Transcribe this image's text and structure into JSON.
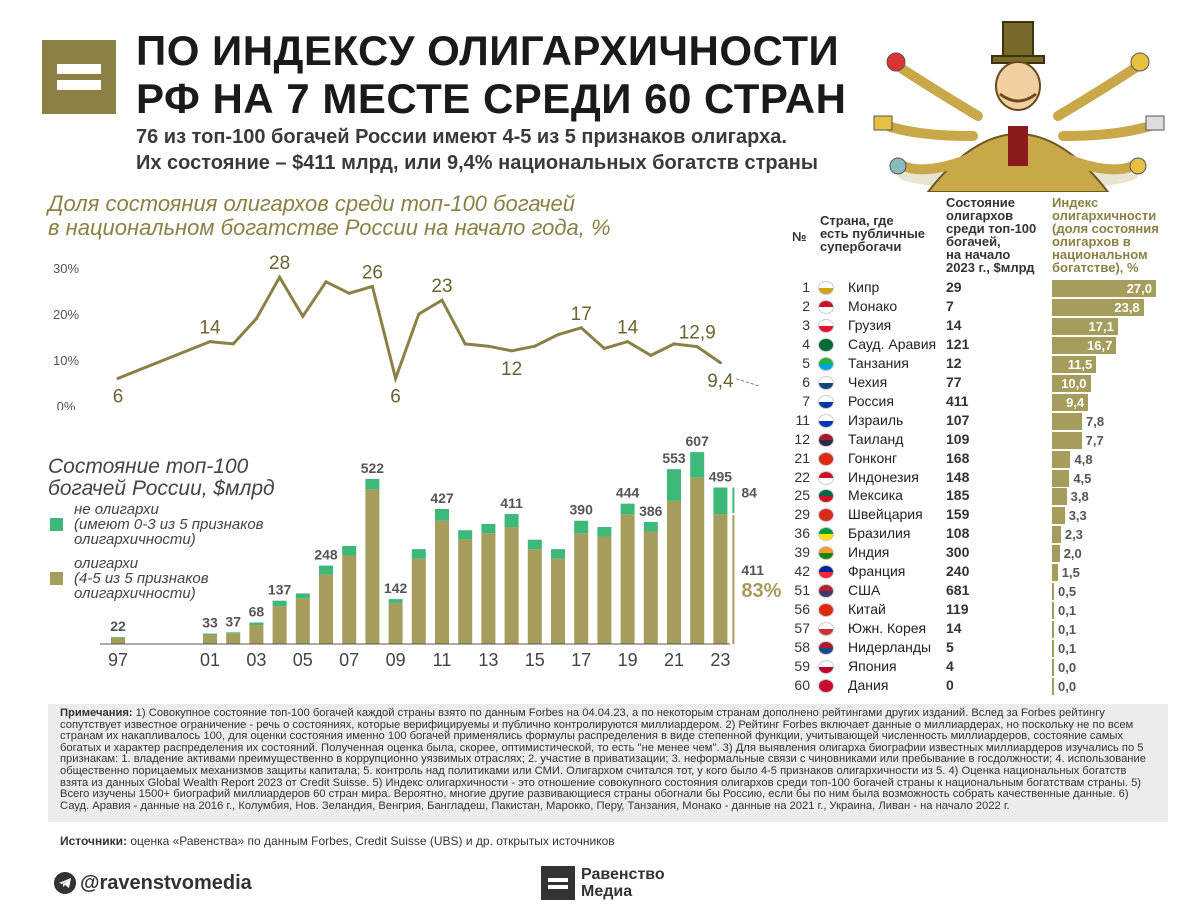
{
  "header": {
    "title_line1": "ПО ИНДЕКСУ ОЛИГАРХИЧНОСТИ",
    "title_line2": "РФ НА 7 МЕСТЕ СРЕДИ 60 СТРАН",
    "subtitle_line1": "76 из топ-100 богачей России имеют 4-5 из 5 признаков олигарха.",
    "subtitle_line2": "Их состояние – $411 млрд, или 9,4% национальных богатств страны"
  },
  "colors": {
    "olive": "#a69c5c",
    "olive_dark": "#8b8045",
    "green": "#3cb878",
    "logo": "#8b8045"
  },
  "line_chart": {
    "title_line1": "Доля состояния олигархов среди топ-100 богачей",
    "title_line2": "в национальном богатстве России на начало года, %",
    "y_ticks": [
      "30%",
      "20%",
      "10%",
      "0%"
    ]
  },
  "bar_chart": {
    "title_line1": "Состояние топ-100",
    "title_line2": "богачей России, $млрд",
    "legend_non_oligarch_1": "не олигархи",
    "legend_non_oligarch_2": "(имеют 0-3 из 5 признаков",
    "legend_non_oligarch_3": "олигархичности)",
    "legend_oligarch_1": "олигархи",
    "legend_oligarch_2": "(4-5 из 5 признаков",
    "legend_oligarch_3": "олигархичности)",
    "side_non_oligarch": "84",
    "side_oligarch": "411",
    "side_pct": "83%"
  },
  "chart_data": [
    {
      "type": "line",
      "title": "Доля состояния олигархов среди топ-100 богачей в национальном богатстве России на начало года, %",
      "x": [
        1997,
        2001,
        2002,
        2003,
        2004,
        2005,
        2006,
        2007,
        2008,
        2009,
        2010,
        2011,
        2012,
        2013,
        2014,
        2015,
        2016,
        2017,
        2018,
        2019,
        2020,
        2021,
        2022,
        2023
      ],
      "values": [
        6,
        14,
        13.5,
        19,
        28,
        19.5,
        27,
        24.5,
        26,
        6,
        20,
        23,
        13.5,
        13,
        12,
        13,
        15.5,
        17,
        12.5,
        14,
        11,
        13.5,
        12.9,
        9.4
      ],
      "labels": {
        "1997": "6",
        "2001": "14",
        "2004": "28",
        "2008": "26",
        "2009": "6",
        "2011": "23",
        "2014": "12",
        "2017": "17",
        "2019": "14",
        "2022": "12,9",
        "2023": "9,4"
      },
      "ylim": [
        0,
        30
      ],
      "y_ticks": [
        0,
        10,
        20,
        30
      ]
    },
    {
      "type": "bar",
      "stacked": true,
      "title": "Состояние топ-100 богачей России, $млрд",
      "x": [
        1997,
        2001,
        2002,
        2003,
        2004,
        2005,
        2006,
        2007,
        2008,
        2009,
        2010,
        2011,
        2012,
        2013,
        2014,
        2015,
        2016,
        2017,
        2018,
        2019,
        2020,
        2021,
        2022,
        2023
      ],
      "x_tick_labels": [
        "97",
        "01",
        "03",
        "05",
        "07",
        "09",
        "11",
        "13",
        "15",
        "17",
        "19",
        "21",
        "23"
      ],
      "totals": [
        22,
        33,
        37,
        68,
        137,
        160,
        248,
        310,
        522,
        142,
        300,
        427,
        360,
        380,
        411,
        330,
        300,
        390,
        370,
        444,
        386,
        553,
        607,
        495
      ],
      "total_labels": {
        "1997": "22",
        "2001": "33",
        "2002": "37",
        "2003": "68",
        "2004": "137",
        "2006": "248",
        "2008": "522",
        "2009": "142",
        "2011": "427",
        "2014": "411",
        "2017": "390",
        "2019": "444",
        "2020": "386",
        "2021": "553",
        "2022": "607",
        "2023": "495"
      },
      "series": [
        {
          "name": "олигархи (4-5 из 5 признаков олигархичности)",
          "values": [
            20,
            30,
            34,
            60,
            120,
            145,
            220,
            280,
            490,
            130,
            270,
            390,
            330,
            350,
            370,
            300,
            270,
            350,
            340,
            410,
            356,
            453,
            527,
            411
          ]
        },
        {
          "name": "не олигархи (имеют 0-3 из 5 признаков олигархичности)",
          "values": [
            2,
            3,
            3,
            8,
            17,
            15,
            28,
            30,
            32,
            12,
            30,
            37,
            30,
            30,
            41,
            30,
            30,
            40,
            30,
            34,
            30,
            100,
            80,
            84
          ]
        }
      ],
      "ylim": [
        0,
        620
      ]
    },
    {
      "type": "table",
      "title": "Индекс олигархичности (доля состояния олигархов в национальном богатстве), %",
      "columns": [
        "№",
        "Страна, где есть публичные супербогачи",
        "Состояние олигархов среди топ-100 богачей, на начало 2023 г., $млрд",
        "Индекс олигархичности (доля состояния олигархов в национальном богатстве), %"
      ],
      "ranks": [
        "1",
        "2",
        "3",
        "4",
        "5",
        "6",
        "7",
        "11",
        "12",
        "21",
        "22",
        "25",
        "29",
        "36",
        "39",
        "42",
        "51",
        "56",
        "57",
        "58",
        "59",
        "60"
      ],
      "countries": [
        "Кипр",
        "Монако",
        "Грузия",
        "Сауд. Аравия",
        "Танзания",
        "Чехия",
        "Россия",
        "Израиль",
        "Таиланд",
        "Гонконг",
        "Индонезия",
        "Мексика",
        "Швейцария",
        "Бразилия",
        "Индия",
        "Франция",
        "США",
        "Китай",
        "Южн. Корея",
        "Нидерланды",
        "Япония",
        "Дания"
      ],
      "wealth": [
        "29",
        "7",
        "14",
        "121",
        "12",
        "77",
        "411",
        "107",
        "109",
        "168",
        "148",
        "185",
        "159",
        "108",
        "300",
        "240",
        "681",
        "119",
        "14",
        "5",
        "4",
        "0"
      ],
      "index_values": [
        27.0,
        23.8,
        17.1,
        16.7,
        11.5,
        10.0,
        9.4,
        7.8,
        7.7,
        4.8,
        4.5,
        3.8,
        3.3,
        2.3,
        2.0,
        1.5,
        0.5,
        0.1,
        0.1,
        0.1,
        0.0,
        0.0
      ],
      "index_labels": [
        "27,0",
        "23,8",
        "17,1",
        "16,7",
        "11,5",
        "10,0",
        "9,4",
        "7,8",
        "7,7",
        "4,8",
        "4,5",
        "3,8",
        "3,3",
        "2,3",
        "2,0",
        "1,5",
        "0,5",
        "0,1",
        "0,1",
        "0,1",
        "0,0",
        "0,0"
      ]
    }
  ],
  "table": {
    "col_rank": "№",
    "col_country_1": "Страна, где",
    "col_country_2": "есть публичные",
    "col_country_3": "супербогачи",
    "col_wealth_1": "Состояние",
    "col_wealth_2": "олигархов",
    "col_wealth_3": "среди топ-100",
    "col_wealth_4": "богачей,",
    "col_wealth_5": "на начало",
    "col_wealth_6": "2023 г., $млрд",
    "col_index_1": "Индекс",
    "col_index_2": "олигархичности",
    "col_index_3": "(доля состояния",
    "col_index_4": "олигархов в",
    "col_index_5": "национальном",
    "col_index_6": "богатстве), %",
    "flag_colors": [
      [
        "#ffffff",
        "#d4a017"
      ],
      [
        "#ce1126",
        "#ffffff"
      ],
      [
        "#ffffff",
        "#e8112d"
      ],
      [
        "#006c35",
        "#006c35"
      ],
      [
        "#1eb53a",
        "#00a3dd"
      ],
      [
        "#ffffff",
        "#11457e"
      ],
      [
        "#ffffff",
        "#0039a6"
      ],
      [
        "#ffffff",
        "#0038b8"
      ],
      [
        "#a51931",
        "#2d2a4a"
      ],
      [
        "#de2910",
        "#de2910"
      ],
      [
        "#ce1126",
        "#ffffff"
      ],
      [
        "#006847",
        "#ce1126"
      ],
      [
        "#d52b1e",
        "#d52b1e"
      ],
      [
        "#009c3b",
        "#ffdf00"
      ],
      [
        "#ff9933",
        "#138808"
      ],
      [
        "#002395",
        "#ed2939"
      ],
      [
        "#b22234",
        "#3c3b6e"
      ],
      [
        "#de2910",
        "#de2910"
      ],
      [
        "#ffffff",
        "#cd2e3a"
      ],
      [
        "#ae1c28",
        "#21468b"
      ],
      [
        "#ffffff",
        "#bc002d"
      ],
      [
        "#c60c30",
        "#c60c30"
      ]
    ]
  },
  "notes": {
    "label": "Примечания:",
    "text": " 1) Совокупное состояние топ-100 богачей каждой страны взято по данным Forbes на 04.04.23, а по некоторым странам дополнено рейтингами других изданий. Вслед за Forbes рейтингу сопутствует известное ограничение - речь о состояниях, которые верифицируемы и публично контролируются миллиардером. 2) Рейтинг Forbes включает данные о миллиардерах, но поскольку не по всем странам их накапливалось 100, для оценки состояния именно 100 богачей применялись формулы распределения в виде степенной функции, учитывающей численность миллиардеров, состояние самых богатых и характер распределения их состояний. Полученная оценка была, скорее, оптимистической, то есть \"не менее чем\". 3) Для выявления олигарха биографии известных миллиардеров изучались по 5 признакам: 1. владение активами преимущественно в коррупционно уязвимых отраслях; 2. участие в приватизации; 3. неформальные связи с чиновниками или пребывание в госдолжности; 4. использование общественно порицаемых механизмов защиты капитала; 5. контроль над политиками или СМИ. Олигархом считался тот, у кого было 4-5 признаков олигархичности из 5. 4) Оценка национальных богатств взята из данных Global Wealth Report 2023 от Credit Suisse. 5) Индекс олигархичности - это отношение совокупного состояния олигархов среди топ-100 богачей страны к национальным богатствам страны. 5) Всего изучены 1500+ биографий миллиардеров 60 стран мира. Вероятно, многие другие развивающиеся страны обогнали бы Россию, если бы по ним была возможность собрать качественные данные. 6) Сауд. Аравия - данные на 2016 г., Колумбия, Нов. Зеландия, Венгрия, Бангладеш, Пакистан, Марокко, Перу, Танзания, Монако - данные на 2021 г., Украина, Ливан - на начало 2022 г."
  },
  "sources": {
    "label": "Источники:",
    "text": " оценка «Равенства» по данным Forbes, Credit Suisse (UBS) и др. открытых источников"
  },
  "footer": {
    "handle": "@ravenstvomedia",
    "brand_line1": "Равенство",
    "brand_line2": "Медиа",
    "telegram_icon": "telegram-icon"
  }
}
